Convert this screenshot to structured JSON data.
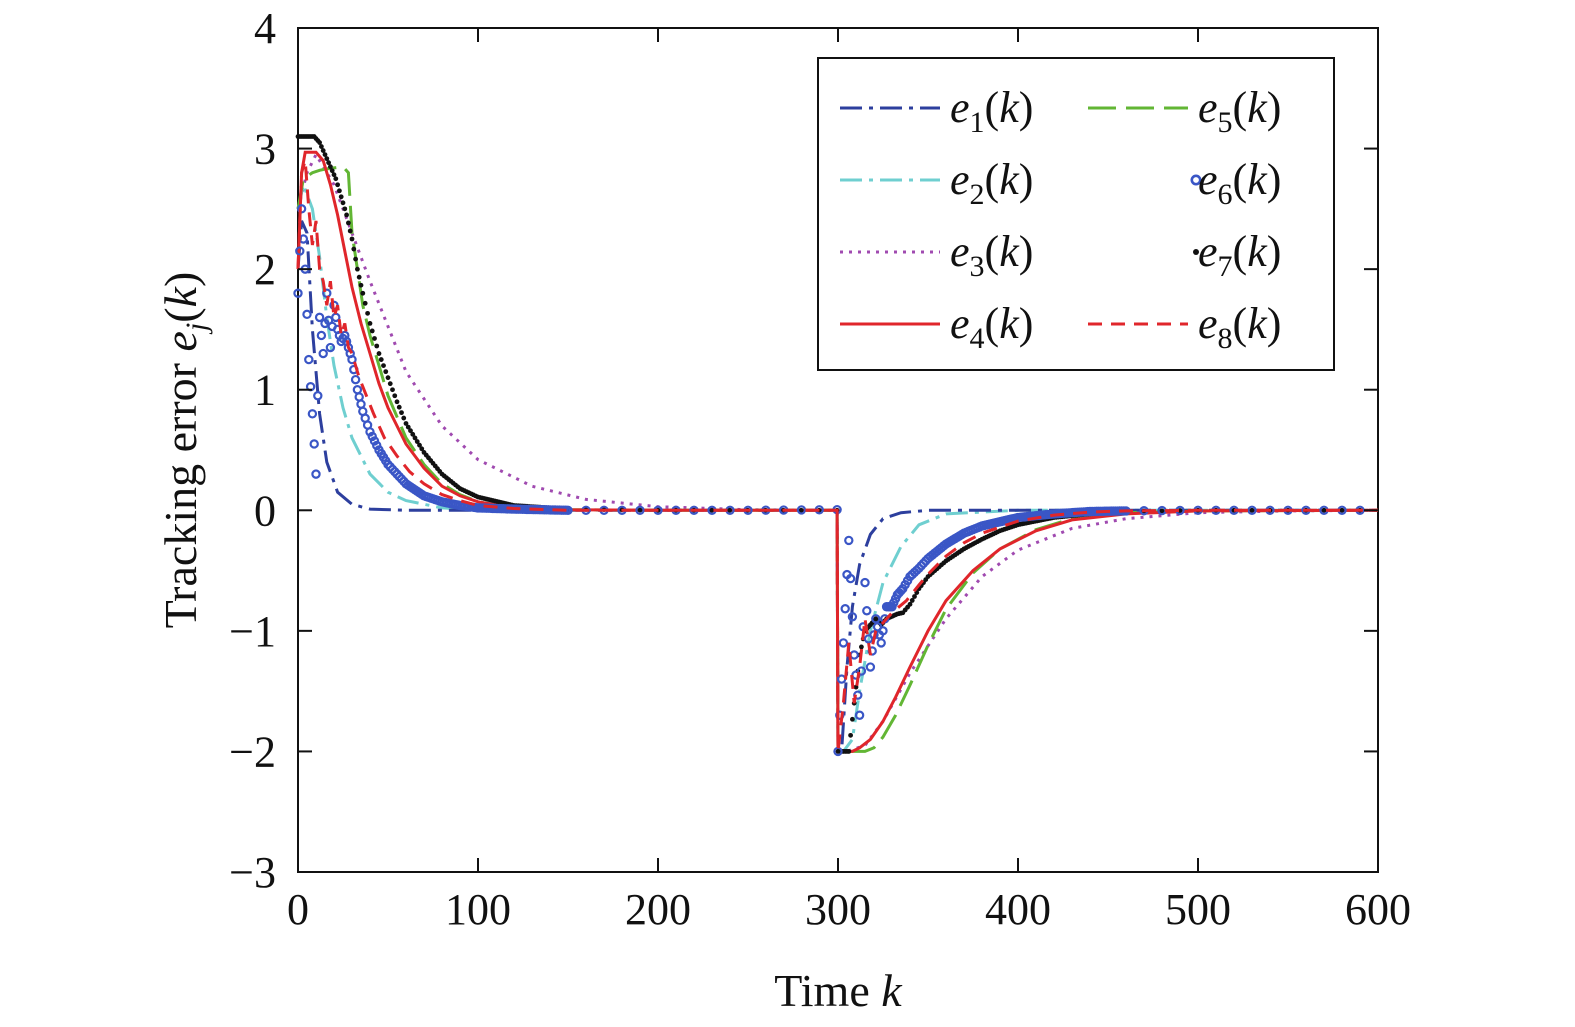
{
  "chart_data": {
    "type": "line",
    "xlabel": "Time k",
    "ylabel": "Tracking error e_j(k)",
    "xlim": [
      0,
      600
    ],
    "ylim": [
      -3,
      4
    ],
    "xticks": [
      "0",
      "100",
      "200",
      "300",
      "400",
      "500",
      "600"
    ],
    "yticks": [
      "4",
      "3",
      "2",
      "1",
      "0",
      "−1",
      "−2",
      "−3"
    ],
    "grid": false,
    "legend_position": "top-right",
    "colors": {
      "e1": "#2d3f9e",
      "e2": "#6fcfd0",
      "e3": "#a04ab0",
      "e4": "#e0262b",
      "e5": "#62b634",
      "e6": "#3a56c6",
      "e7": "#111111",
      "e8": "#e0262b"
    },
    "legend": [
      {
        "key": "e1",
        "label": "e1(k)",
        "style": "dashdot"
      },
      {
        "key": "e2",
        "label": "e2(k)",
        "style": "dashdot"
      },
      {
        "key": "e3",
        "label": "e3(k)",
        "style": "dotted"
      },
      {
        "key": "e4",
        "label": "e4(k)",
        "style": "solid"
      },
      {
        "key": "e5",
        "label": "e5(k)",
        "style": "longdash"
      },
      {
        "key": "e6",
        "label": "e6(k)",
        "style": "circle"
      },
      {
        "key": "e7",
        "label": "e7(k)",
        "style": "dot"
      },
      {
        "key": "e8",
        "label": "e8(k)",
        "style": "dash"
      }
    ],
    "series": [
      {
        "key": "e1",
        "x": [
          0,
          2,
          5,
          8,
          12,
          16,
          22,
          30,
          40,
          60,
          100,
          200,
          299.5,
          300,
          302,
          305,
          308,
          312,
          318,
          325,
          335,
          350,
          400,
          600
        ],
        "y": [
          2,
          2.4,
          2.3,
          1.5,
          0.8,
          0.4,
          0.15,
          0.05,
          0.01,
          0,
          0,
          0,
          0,
          -2,
          -2,
          -1.3,
          -0.8,
          -0.45,
          -0.2,
          -0.07,
          -0.02,
          0,
          0,
          0
        ]
      },
      {
        "key": "e2",
        "x": [
          0,
          3,
          8,
          12,
          16,
          20,
          25,
          30,
          40,
          50,
          60,
          80,
          100,
          200,
          299.5,
          300,
          303,
          308,
          312,
          318,
          325,
          335,
          345,
          360,
          400,
          600
        ],
        "y": [
          2.5,
          2.7,
          2.5,
          2.1,
          1.6,
          1.2,
          0.85,
          0.6,
          0.3,
          0.15,
          0.08,
          0.02,
          0.005,
          0,
          0,
          -2,
          -2,
          -1.9,
          -1.5,
          -1.0,
          -0.6,
          -0.3,
          -0.12,
          -0.03,
          0,
          0
        ]
      },
      {
        "key": "e3",
        "x": [
          0,
          5,
          10,
          20,
          25,
          30,
          40,
          60,
          80,
          100,
          130,
          160,
          200,
          250,
          299.5,
          300,
          305,
          315,
          325,
          340,
          360,
          380,
          400,
          430,
          460,
          500,
          550,
          600
        ],
        "y": [
          2.5,
          2.8,
          2.95,
          2.7,
          2.5,
          2.3,
          1.9,
          1.15,
          0.7,
          0.42,
          0.2,
          0.09,
          0.03,
          0.005,
          0,
          -2,
          -2,
          -1.95,
          -1.75,
          -1.35,
          -0.9,
          -0.55,
          -0.33,
          -0.15,
          -0.07,
          -0.02,
          -0.005,
          0
        ]
      },
      {
        "key": "e4",
        "x": [
          0,
          2,
          4,
          7,
          10,
          14,
          18,
          22,
          26,
          30,
          35,
          40,
          45,
          50,
          60,
          70,
          80,
          90,
          100,
          120,
          150,
          200,
          299.5,
          300,
          303,
          308,
          312,
          318,
          325,
          332,
          340,
          350,
          360,
          375,
          390,
          410,
          430,
          460,
          500,
          600
        ],
        "y": [
          2,
          2.8,
          2.97,
          2.97,
          2.97,
          2.9,
          2.7,
          2.45,
          2.15,
          1.85,
          1.55,
          1.3,
          1.05,
          0.85,
          0.55,
          0.35,
          0.2,
          0.12,
          0.07,
          0.02,
          0.005,
          0,
          0,
          -2,
          -2,
          -2,
          -1.97,
          -1.9,
          -1.75,
          -1.55,
          -1.3,
          -1.0,
          -0.75,
          -0.5,
          -0.32,
          -0.17,
          -0.08,
          -0.03,
          -0.005,
          0
        ]
      },
      {
        "key": "e5",
        "x": [
          0,
          3,
          8,
          12,
          15,
          20,
          25,
          28,
          30,
          33,
          36,
          40,
          45,
          50,
          60,
          70,
          80,
          90,
          100,
          120,
          150,
          200,
          299.5,
          300,
          303,
          310,
          315,
          320,
          325,
          332,
          340,
          350,
          360,
          375,
          390,
          410,
          430,
          460,
          500,
          600
        ],
        "y": [
          2.5,
          2.75,
          2.8,
          2.82,
          2.83,
          2.84,
          2.85,
          2.8,
          2.3,
          2.0,
          1.7,
          1.45,
          1.2,
          0.95,
          0.6,
          0.38,
          0.22,
          0.13,
          0.07,
          0.02,
          0.005,
          0,
          0,
          -2,
          -2,
          -2,
          -2,
          -1.97,
          -1.88,
          -1.7,
          -1.45,
          -1.12,
          -0.82,
          -0.52,
          -0.32,
          -0.16,
          -0.07,
          -0.02,
          -0.005,
          0
        ]
      },
      {
        "key": "e6",
        "x": [
          0,
          2,
          4,
          6,
          8,
          10,
          12,
          14,
          16,
          18,
          20,
          22,
          24,
          26,
          28,
          30,
          33,
          36,
          40,
          45,
          50,
          60,
          70,
          80,
          90,
          100,
          120,
          150,
          200,
          250,
          299.5,
          300,
          303,
          306,
          309,
          312,
          315,
          318,
          321,
          324,
          327,
          330,
          333,
          336,
          340,
          345,
          350,
          360,
          370,
          380,
          400,
          420,
          440,
          460,
          500,
          600
        ],
        "y": [
          1.8,
          2.5,
          2.0,
          1.25,
          0.8,
          0.3,
          1.6,
          1.3,
          1.8,
          1.35,
          1.7,
          1.5,
          1.4,
          1.45,
          1.35,
          1.25,
          1.0,
          0.82,
          0.65,
          0.5,
          0.38,
          0.22,
          0.12,
          0.07,
          0.04,
          0.02,
          0.01,
          0,
          0,
          0,
          0.005,
          -2,
          -1.1,
          -0.25,
          -1.2,
          -1.7,
          -0.6,
          -1.3,
          -0.9,
          -1.1,
          -0.8,
          -0.8,
          -0.7,
          -0.65,
          -0.55,
          -0.48,
          -0.4,
          -0.28,
          -0.19,
          -0.13,
          -0.06,
          -0.03,
          -0.01,
          -0.005,
          0,
          0
        ]
      },
      {
        "key": "e7",
        "x": [
          0,
          3,
          6,
          9,
          12,
          15,
          18,
          21,
          24,
          27,
          30,
          33,
          36,
          40,
          45,
          50,
          55,
          60,
          70,
          80,
          90,
          100,
          120,
          150,
          200,
          299.5,
          300,
          303,
          306,
          309,
          312,
          315,
          318,
          321,
          324,
          327,
          330,
          333,
          336,
          340,
          345,
          350,
          360,
          370,
          380,
          390,
          400,
          420,
          440,
          460,
          500,
          600
        ],
        "y": [
          3.1,
          3.1,
          3.1,
          3.1,
          3.05,
          2.95,
          2.85,
          2.75,
          2.6,
          2.45,
          2.25,
          2.0,
          1.8,
          1.55,
          1.3,
          1.1,
          0.9,
          0.72,
          0.48,
          0.3,
          0.18,
          0.11,
          0.04,
          0.01,
          0,
          0,
          -2,
          -2,
          -2,
          -1.6,
          -1.2,
          -1.0,
          -0.95,
          -0.9,
          -0.95,
          -0.9,
          -0.88,
          -0.86,
          -0.85,
          -0.78,
          -0.65,
          -0.55,
          -0.42,
          -0.32,
          -0.24,
          -0.17,
          -0.12,
          -0.06,
          -0.03,
          -0.01,
          0,
          0
        ]
      },
      {
        "key": "e8",
        "x": [
          0,
          2,
          4,
          6,
          8,
          10,
          12,
          14,
          16,
          18,
          20,
          22,
          24,
          26,
          28,
          30,
          34,
          38,
          42,
          48,
          55,
          62,
          70,
          80,
          90,
          100,
          120,
          150,
          200,
          250,
          299.5,
          300,
          303,
          306,
          309,
          312,
          315,
          318,
          321,
          324,
          327,
          330,
          334,
          338,
          345,
          350,
          360,
          370,
          380,
          400,
          420,
          440,
          460,
          500,
          600
        ],
        "y": [
          2,
          2.8,
          2.9,
          2.5,
          2.2,
          2.4,
          2.0,
          1.9,
          1.7,
          1.9,
          1.6,
          1.7,
          1.45,
          1.55,
          1.35,
          1.3,
          1.1,
          0.95,
          0.8,
          0.6,
          0.45,
          0.32,
          0.22,
          0.13,
          0.08,
          0.04,
          0.015,
          0,
          0,
          0,
          0,
          -2,
          -1.6,
          -1.1,
          -1.6,
          -1.3,
          -0.9,
          -1.2,
          -1.0,
          -0.95,
          -0.9,
          -0.85,
          -0.8,
          -0.75,
          -0.62,
          -0.53,
          -0.38,
          -0.27,
          -0.19,
          -0.09,
          -0.04,
          -0.015,
          -0.005,
          0,
          0
        ]
      }
    ]
  }
}
